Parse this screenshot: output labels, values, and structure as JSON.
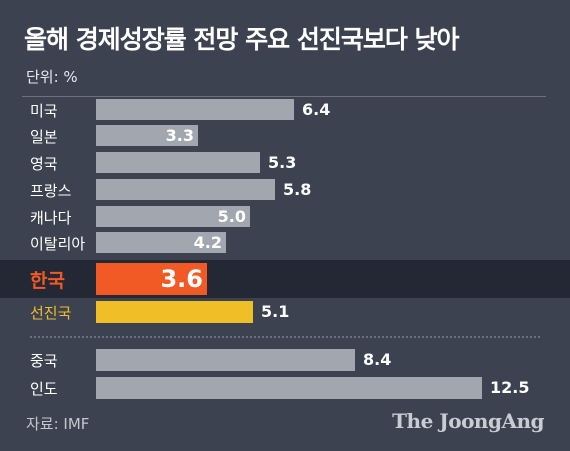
{
  "title": "올해 경제성장률 전망 주요 선진국보다 낮아",
  "unit_label": "단위: %",
  "source": "자료: IMF",
  "logo_text": "The JoongAng",
  "colors": {
    "background": "#3d4250",
    "bar": "#a2a6ae",
    "korea": "#f15a24",
    "advanced": "#f0bf28"
  },
  "chart_data": {
    "type": "bar",
    "orientation": "horizontal",
    "categories": [
      "미국",
      "일본",
      "영국",
      "프랑스",
      "캐나다",
      "이탈리아",
      "한국",
      "선진국",
      "중국",
      "인도"
    ],
    "values": [
      6.4,
      3.3,
      5.3,
      5.8,
      5.0,
      4.2,
      3.6,
      5.1,
      8.4,
      12.5
    ],
    "value_labels": [
      "6.4",
      "3.3",
      "5.3",
      "5.8",
      "5.0",
      "4.2",
      "3.6",
      "5.1",
      "8.4",
      "12.5"
    ],
    "highlight": [
      "한국",
      "선진국"
    ],
    "title": "올해 경제성장률 전망 주요 선진국보다 낮아",
    "xlabel": "",
    "ylabel": "",
    "xlim": [
      0,
      12.5
    ]
  }
}
